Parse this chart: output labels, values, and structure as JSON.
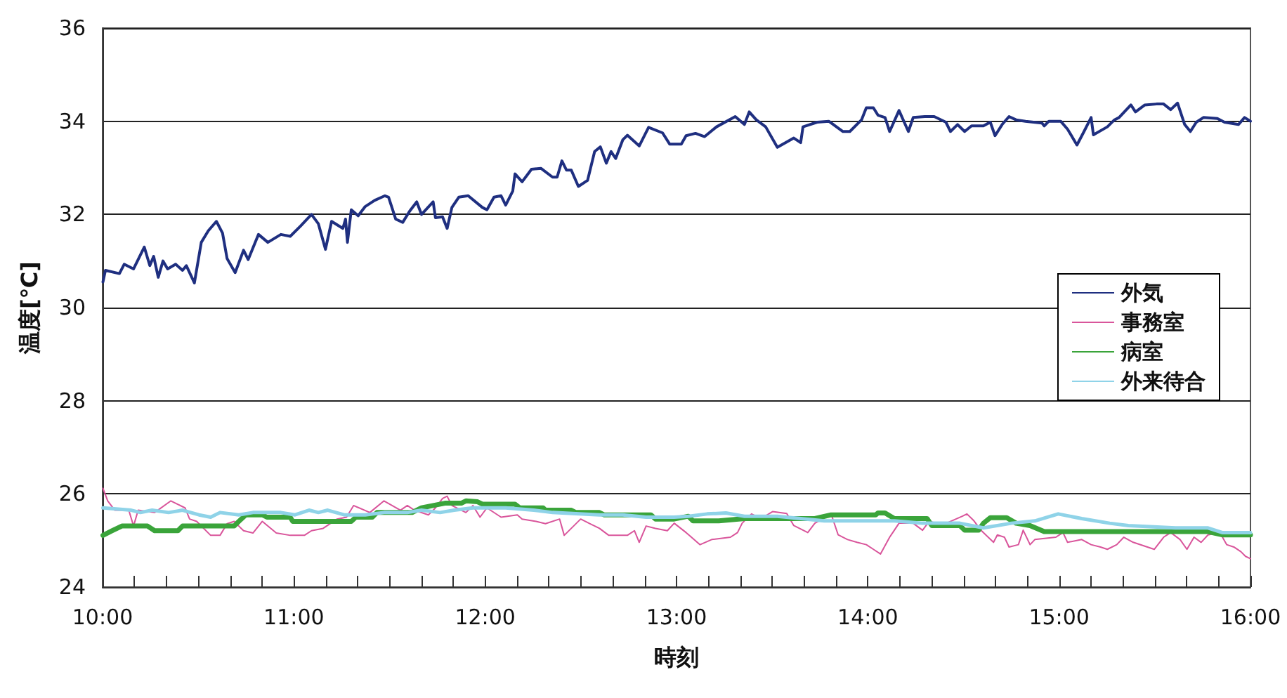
{
  "chart_data": {
    "type": "line",
    "xlabel": "時刻",
    "ylabel": "温度[℃]",
    "xlim": [
      10,
      16
    ],
    "ylim": [
      24,
      36
    ],
    "yticks": [
      24,
      26,
      28,
      30,
      32,
      34,
      36
    ],
    "xticks": [
      {
        "value": 10,
        "label": "10:00"
      },
      {
        "value": 10.1667,
        "label": null
      },
      {
        "value": 10.3333,
        "label": null
      },
      {
        "value": 10.5,
        "label": null
      },
      {
        "value": 10.6667,
        "label": null
      },
      {
        "value": 10.8333,
        "label": null
      },
      {
        "value": 11,
        "label": "11:00"
      },
      {
        "value": 11.1667,
        "label": null
      },
      {
        "value": 11.3333,
        "label": null
      },
      {
        "value": 11.5,
        "label": null
      },
      {
        "value": 11.6667,
        "label": null
      },
      {
        "value": 11.8333,
        "label": null
      },
      {
        "value": 12,
        "label": "12:00"
      },
      {
        "value": 12.1667,
        "label": null
      },
      {
        "value": 12.3333,
        "label": null
      },
      {
        "value": 12.5,
        "label": null
      },
      {
        "value": 12.6667,
        "label": null
      },
      {
        "value": 12.8333,
        "label": null
      },
      {
        "value": 13,
        "label": "13:00"
      },
      {
        "value": 13.1667,
        "label": null
      },
      {
        "value": 13.3333,
        "label": null
      },
      {
        "value": 13.5,
        "label": null
      },
      {
        "value": 13.6667,
        "label": null
      },
      {
        "value": 13.8333,
        "label": null
      },
      {
        "value": 14,
        "label": "14:00"
      },
      {
        "value": 14.1667,
        "label": null
      },
      {
        "value": 14.3333,
        "label": null
      },
      {
        "value": 14.5,
        "label": null
      },
      {
        "value": 14.6667,
        "label": null
      },
      {
        "value": 14.8333,
        "label": null
      },
      {
        "value": 15,
        "label": "15:00"
      },
      {
        "value": 15.1667,
        "label": null
      },
      {
        "value": 15.3333,
        "label": null
      },
      {
        "value": 15.5,
        "label": null
      },
      {
        "value": 15.6667,
        "label": null
      },
      {
        "value": 15.8333,
        "label": null
      },
      {
        "value": 16,
        "label": "16:00"
      }
    ],
    "grid": "y",
    "legend": "right",
    "marker": "none",
    "line_style": "solid",
    "series": [
      {
        "name": "外気",
        "color": "#1f2f80",
        "x": [
          10.002,
          10.015,
          10.088,
          10.113,
          10.162,
          10.218,
          10.247,
          10.267,
          10.291,
          10.316,
          10.34,
          10.382,
          10.418,
          10.438,
          10.48,
          10.516,
          10.553,
          10.595,
          10.627,
          10.651,
          10.693,
          10.737,
          10.761,
          10.815,
          10.864,
          10.932,
          10.981,
          11.035,
          11.092,
          11.128,
          11.165,
          11.197,
          11.256,
          11.27,
          11.28,
          11.3,
          11.336,
          11.373,
          11.422,
          11.476,
          11.495,
          11.532,
          11.569,
          11.605,
          11.642,
          11.667,
          11.728,
          11.74,
          11.777,
          11.801,
          11.826,
          11.862,
          11.911,
          11.985,
          12.009,
          12.046,
          12.083,
          12.107,
          12.144,
          12.156,
          12.193,
          12.242,
          12.291,
          12.352,
          12.376,
          12.401,
          12.425,
          12.45,
          12.487,
          12.535,
          12.572,
          12.602,
          12.633,
          12.658,
          12.682,
          12.719,
          12.743,
          12.805,
          12.854,
          12.927,
          12.964,
          13.025,
          13.05,
          13.099,
          13.147,
          13.209,
          13.307,
          13.355,
          13.38,
          13.417,
          13.466,
          13.527,
          13.613,
          13.649,
          13.661,
          13.735,
          13.796,
          13.87,
          13.906,
          13.967,
          13.992,
          14.029,
          14.053,
          14.09,
          14.114,
          14.163,
          14.212,
          14.237,
          14.298,
          14.347,
          14.408,
          14.432,
          14.469,
          14.506,
          14.542,
          14.604,
          14.64,
          14.665,
          14.702,
          14.738,
          14.775,
          14.824,
          14.91,
          14.922,
          14.946,
          15.008,
          15.044,
          15.093,
          15.13,
          15.167,
          15.179,
          15.252,
          15.289,
          15.313,
          15.375,
          15.399,
          15.448,
          15.509,
          15.546,
          15.583,
          15.619,
          15.656,
          15.686,
          15.717,
          15.754,
          15.827,
          15.864,
          15.937,
          15.969,
          16.0
        ],
        "values": [
          30.55,
          30.8,
          30.73,
          30.93,
          30.83,
          31.3,
          30.9,
          31.1,
          30.65,
          31.0,
          30.83,
          30.93,
          30.8,
          30.9,
          30.53,
          31.4,
          31.65,
          31.85,
          31.6,
          31.05,
          30.75,
          31.23,
          31.03,
          31.57,
          31.4,
          31.57,
          31.53,
          31.75,
          32.0,
          31.8,
          31.25,
          31.85,
          31.7,
          31.9,
          31.4,
          32.1,
          31.97,
          32.17,
          32.3,
          32.4,
          32.37,
          31.9,
          31.83,
          32.07,
          32.27,
          32.0,
          32.27,
          31.93,
          31.95,
          31.7,
          32.15,
          32.37,
          32.4,
          32.15,
          32.1,
          32.37,
          32.4,
          32.2,
          32.5,
          32.87,
          32.7,
          32.97,
          32.99,
          32.8,
          32.8,
          33.15,
          32.95,
          32.95,
          32.6,
          32.73,
          33.35,
          33.45,
          33.1,
          33.35,
          33.2,
          33.6,
          33.7,
          33.47,
          33.87,
          33.75,
          33.51,
          33.51,
          33.69,
          33.74,
          33.67,
          33.88,
          34.1,
          33.93,
          34.2,
          34.03,
          33.88,
          33.44,
          33.64,
          33.54,
          33.88,
          33.98,
          34.0,
          33.78,
          33.78,
          34.03,
          34.29,
          34.29,
          34.13,
          34.08,
          33.78,
          34.23,
          33.78,
          34.08,
          34.1,
          34.1,
          33.98,
          33.78,
          33.93,
          33.78,
          33.9,
          33.9,
          33.98,
          33.69,
          33.93,
          34.1,
          34.03,
          34.0,
          33.96,
          33.9,
          34.0,
          34.0,
          33.83,
          33.49,
          33.78,
          34.08,
          33.71,
          33.88,
          34.03,
          34.08,
          34.35,
          34.2,
          34.35,
          34.37,
          34.37,
          34.25,
          34.39,
          33.93,
          33.78,
          33.98,
          34.08,
          34.06,
          33.98,
          33.93,
          34.08,
          34.0
        ]
      },
      {
        "name": "事務室",
        "color": "#d9559b",
        "x": [
          10.002,
          10.027,
          10.064,
          10.137,
          10.162,
          10.186,
          10.272,
          10.357,
          10.431,
          10.455,
          10.492,
          10.565,
          10.614,
          10.651,
          10.688,
          10.712,
          10.737,
          10.786,
          10.835,
          10.908,
          10.981,
          11.055,
          11.092,
          11.153,
          11.226,
          11.275,
          11.312,
          11.397,
          11.471,
          11.557,
          11.593,
          11.63,
          11.703,
          11.74,
          11.777,
          11.801,
          11.826,
          11.899,
          11.936,
          11.973,
          12.009,
          12.083,
          12.168,
          12.193,
          12.266,
          12.315,
          12.389,
          12.413,
          12.499,
          12.548,
          12.597,
          12.646,
          12.743,
          12.78,
          12.805,
          12.841,
          12.89,
          12.952,
          12.988,
          13.05,
          13.123,
          13.184,
          13.282,
          13.319,
          13.343,
          13.392,
          13.441,
          13.502,
          13.576,
          13.613,
          13.686,
          13.723,
          13.808,
          13.845,
          13.894,
          13.943,
          13.992,
          14.029,
          14.066,
          14.114,
          14.163,
          14.237,
          14.286,
          14.322,
          14.383,
          14.494,
          14.518,
          14.555,
          14.591,
          14.657,
          14.677,
          14.714,
          14.738,
          14.787,
          14.812,
          14.848,
          14.873,
          14.983,
          15.02,
          15.044,
          15.118,
          15.167,
          15.216,
          15.252,
          15.301,
          15.338,
          15.387,
          15.497,
          15.546,
          15.583,
          15.632,
          15.668,
          15.705,
          15.742,
          15.778,
          15.84,
          15.876,
          15.913,
          15.95,
          15.974,
          16.0
        ],
        "values": [
          26.12,
          25.85,
          25.65,
          25.65,
          25.31,
          25.65,
          25.6,
          25.85,
          25.7,
          25.46,
          25.41,
          25.11,
          25.11,
          25.36,
          25.41,
          25.31,
          25.21,
          25.16,
          25.41,
          25.16,
          25.11,
          25.11,
          25.21,
          25.26,
          25.46,
          25.5,
          25.75,
          25.6,
          25.85,
          25.65,
          25.75,
          25.65,
          25.55,
          25.7,
          25.9,
          25.95,
          25.75,
          25.6,
          25.75,
          25.5,
          25.7,
          25.5,
          25.55,
          25.46,
          25.41,
          25.36,
          25.46,
          25.11,
          25.46,
          25.36,
          25.26,
          25.11,
          25.11,
          25.21,
          24.96,
          25.31,
          25.26,
          25.21,
          25.37,
          25.17,
          24.91,
          25.02,
          25.07,
          25.17,
          25.37,
          25.57,
          25.47,
          25.62,
          25.58,
          25.32,
          25.17,
          25.37,
          25.57,
          25.12,
          25.02,
          24.96,
          24.91,
          24.81,
          24.71,
          25.07,
          25.37,
          25.37,
          25.22,
          25.42,
          25.32,
          25.52,
          25.57,
          25.42,
          25.22,
          24.96,
          25.12,
          25.07,
          24.86,
          24.91,
          25.22,
          24.91,
          25.02,
          25.07,
          25.17,
          24.96,
          25.02,
          24.91,
          24.86,
          24.81,
          24.91,
          25.07,
          24.96,
          24.81,
          25.07,
          25.17,
          25.02,
          24.81,
          25.07,
          24.96,
          25.12,
          25.17,
          24.91,
          24.86,
          24.76,
          24.66,
          24.61
        ]
      },
      {
        "name": "病室",
        "color": "#3aa43a",
        "x": [
          10.002,
          10.051,
          10.101,
          10.174,
          10.235,
          10.272,
          10.394,
          10.418,
          10.688,
          10.712,
          10.749,
          10.835,
          10.859,
          10.981,
          10.994,
          11.3,
          11.324,
          11.41,
          11.434,
          11.618,
          11.667,
          11.728,
          11.789,
          11.875,
          11.899,
          11.96,
          11.985,
          12.156,
          12.181,
          12.303,
          12.315,
          12.45,
          12.474,
          12.597,
          12.621,
          12.866,
          12.89,
          12.988,
          13.062,
          13.086,
          13.221,
          13.355,
          13.49,
          13.723,
          13.808,
          14.041,
          14.053,
          14.09,
          14.139,
          14.31,
          14.334,
          14.481,
          14.506,
          14.579,
          14.604,
          14.64,
          14.726,
          14.775,
          14.848,
          14.922,
          15.778,
          15.852,
          16.0
        ],
        "values": [
          25.11,
          25.21,
          25.31,
          25.31,
          25.31,
          25.21,
          25.21,
          25.31,
          25.31,
          25.41,
          25.55,
          25.55,
          25.5,
          25.5,
          25.41,
          25.41,
          25.5,
          25.5,
          25.6,
          25.6,
          25.7,
          25.75,
          25.8,
          25.8,
          25.85,
          25.83,
          25.78,
          25.78,
          25.7,
          25.7,
          25.65,
          25.65,
          25.6,
          25.6,
          25.55,
          25.55,
          25.46,
          25.46,
          25.52,
          25.42,
          25.42,
          25.47,
          25.47,
          25.47,
          25.55,
          25.55,
          25.59,
          25.59,
          25.47,
          25.47,
          25.32,
          25.32,
          25.22,
          25.22,
          25.37,
          25.49,
          25.49,
          25.37,
          25.32,
          25.19,
          25.19,
          25.12,
          25.12
        ]
      },
      {
        "name": "外来待合",
        "color": "#8fd3e8",
        "x": [
          10.002,
          10.15,
          10.198,
          10.259,
          10.345,
          10.418,
          10.504,
          10.565,
          10.614,
          10.712,
          10.786,
          10.932,
          11.006,
          11.079,
          11.128,
          11.177,
          11.263,
          11.373,
          11.471,
          11.593,
          11.667,
          11.764,
          11.838,
          11.936,
          12.107,
          12.254,
          12.352,
          12.597,
          12.719,
          12.841,
          12.988,
          13.062,
          13.16,
          13.258,
          13.355,
          13.527,
          13.772,
          14.139,
          14.286,
          14.481,
          14.604,
          14.75,
          14.873,
          14.995,
          15.118,
          15.264,
          15.362,
          15.607,
          15.778,
          15.852,
          16.0
        ],
        "values": [
          25.7,
          25.65,
          25.6,
          25.65,
          25.6,
          25.65,
          25.55,
          25.5,
          25.6,
          25.55,
          25.6,
          25.6,
          25.55,
          25.65,
          25.6,
          25.65,
          25.55,
          25.55,
          25.6,
          25.6,
          25.65,
          25.6,
          25.65,
          25.7,
          25.7,
          25.65,
          25.6,
          25.55,
          25.55,
          25.5,
          25.5,
          25.52,
          25.57,
          25.59,
          25.52,
          25.52,
          25.42,
          25.42,
          25.37,
          25.37,
          25.27,
          25.37,
          25.42,
          25.57,
          25.47,
          25.37,
          25.32,
          25.27,
          25.27,
          25.17,
          25.17
        ]
      }
    ]
  }
}
